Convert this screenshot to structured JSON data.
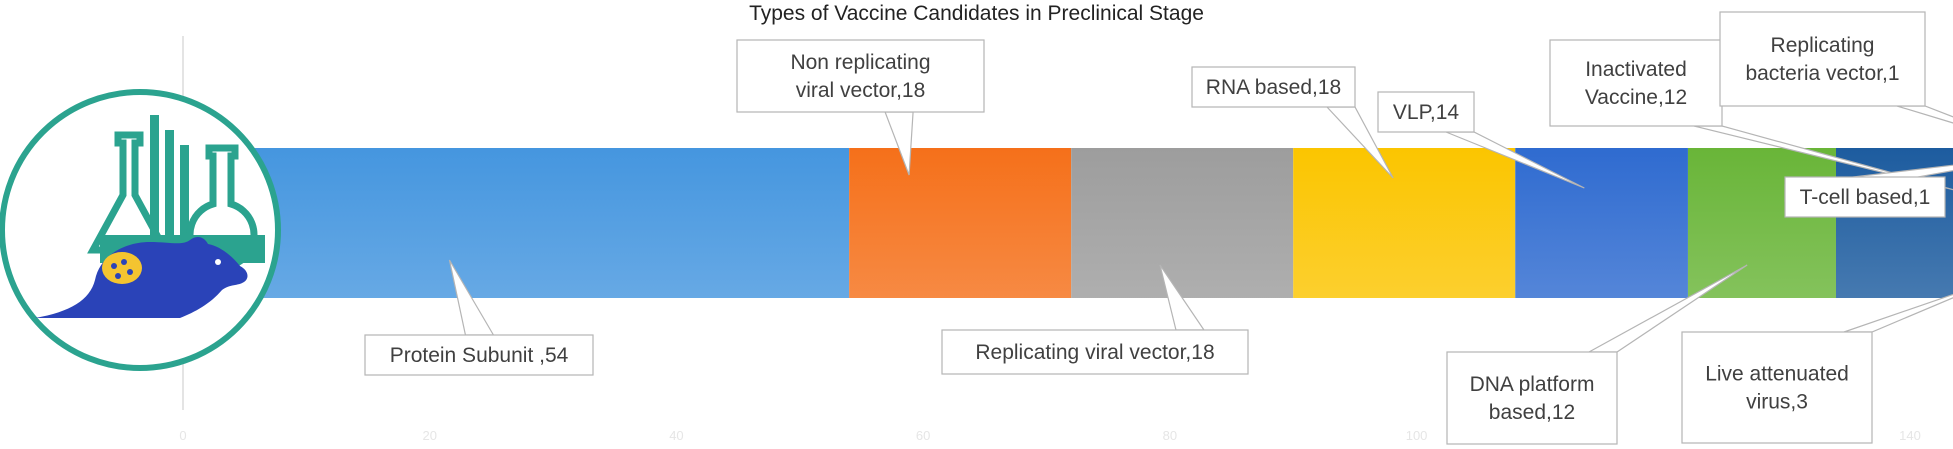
{
  "chart_data": {
    "type": "bar",
    "orientation": "horizontal-stacked",
    "title": "Types of Vaccine Candidates in Preclinical Stage",
    "xlim": [
      0,
      140
    ],
    "x_ticks": [
      0,
      20,
      40,
      60,
      80,
      100,
      140
    ],
    "series": [
      {
        "name": "Protein Subunit",
        "value": 54,
        "label": "Protein Subunit ,54",
        "color": "#4596DF"
      },
      {
        "name": "Non replicating viral vector",
        "value": 18,
        "label": "Non replicating viral vector,18",
        "color": "#F5701A"
      },
      {
        "name": "Replicating viral vector",
        "value": 18,
        "label": "Replicating viral vector,18",
        "color": "#9D9D9D"
      },
      {
        "name": "RNA based",
        "value": 18,
        "label": "RNA based,18",
        "color": "#FBC500"
      },
      {
        "name": "VLP",
        "value": 14,
        "label": "VLP,14",
        "color": "#2F6BD0"
      },
      {
        "name": "DNA platform based",
        "value": 12,
        "label": "DNA platform based,12",
        "color": "#69B538"
      },
      {
        "name": "Inactivated Vaccine",
        "value": 12,
        "label": "Inactivated Vaccine,12",
        "color": "#1D5C9F"
      },
      {
        "name": "Live attenuated virus",
        "value": 3,
        "label": "Live attenuated virus,3",
        "color": "#B4410C"
      },
      {
        "name": "Replicating bacteria vector",
        "value": 1,
        "label": "Replicating bacteria vector,1",
        "color": "#6E6E6E"
      },
      {
        "name": "T-cell based",
        "value": 1,
        "label": "T-cell based,1",
        "color": "#B98706"
      }
    ]
  },
  "colors": {
    "icon_ring": "#2BA38F",
    "icon_body": "#2A43B8",
    "icon_lungs": "#F4C430"
  }
}
